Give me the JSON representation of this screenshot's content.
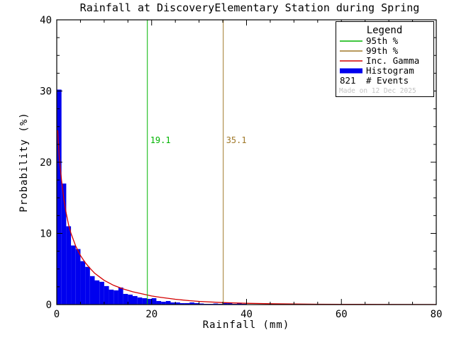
{
  "chart_data": {
    "type": "bar",
    "subtype": "histogram-with-fit",
    "title": "Rainfall at DiscoveryElementary Station during Spring",
    "xlabel": "Rainfall (mm)",
    "ylabel": "Probability (%)",
    "xlim": [
      0,
      80
    ],
    "ylim": [
      0,
      40
    ],
    "x_major_ticks": [
      0,
      20,
      40,
      60,
      80
    ],
    "y_major_ticks": [
      0,
      10,
      20,
      30,
      40
    ],
    "x_minor_step": 5,
    "y_minor_step": 2.5,
    "grid": false,
    "bins_start": 0,
    "bin_width": 1,
    "histogram_values": [
      30.2,
      17.0,
      11.0,
      8.3,
      7.8,
      6.1,
      5.3,
      4.0,
      3.4,
      3.2,
      2.6,
      2.1,
      2.0,
      2.4,
      1.5,
      1.4,
      1.2,
      1.0,
      0.9,
      0.8,
      0.9,
      0.5,
      0.4,
      0.5,
      0.3,
      0.3,
      0.2,
      0.2,
      0.3,
      0.2,
      0.15,
      0.1,
      0.1,
      0.15,
      0.1,
      0.25,
      0.2,
      0.1,
      0.15,
      0.1
    ],
    "gamma_curve": {
      "x": [
        0.2,
        0.5,
        1,
        1.5,
        2,
        2.5,
        3,
        4,
        5,
        6,
        7,
        8,
        9,
        10,
        12,
        14,
        16,
        18,
        20,
        22,
        25,
        28,
        30,
        35,
        40,
        45,
        50,
        55,
        60,
        70,
        80
      ],
      "y": [
        24.5,
        21.0,
        17.5,
        14.8,
        12.8,
        11.2,
        10.0,
        8.2,
        6.9,
        5.9,
        5.1,
        4.4,
        3.9,
        3.4,
        2.7,
        2.2,
        1.8,
        1.5,
        1.2,
        1.0,
        0.75,
        0.55,
        0.45,
        0.28,
        0.18,
        0.12,
        0.08,
        0.05,
        0.04,
        0.02,
        0.01
      ]
    },
    "percentile_95": {
      "value": 19.1,
      "label": "19.1",
      "color": "#00b400"
    },
    "percentile_99": {
      "value": 35.1,
      "label": "35.1",
      "color": "#a07828"
    },
    "colors": {
      "histogram": "#0000ee",
      "gamma": "#d40000",
      "axis": "#000000"
    },
    "legend": {
      "title": "Legend",
      "items": [
        {
          "label": "95th %",
          "color": "#00b400",
          "type": "line"
        },
        {
          "label": "99th %",
          "color": "#a07828",
          "type": "line"
        },
        {
          "label": "Inc. Gamma",
          "color": "#d40000",
          "type": "line"
        },
        {
          "label": "Histogram",
          "color": "#0000ee",
          "type": "thick-line"
        },
        {
          "label": "# Events",
          "value": "821",
          "type": "text"
        }
      ],
      "watermark": "Made on 12 Dec 2025"
    }
  }
}
